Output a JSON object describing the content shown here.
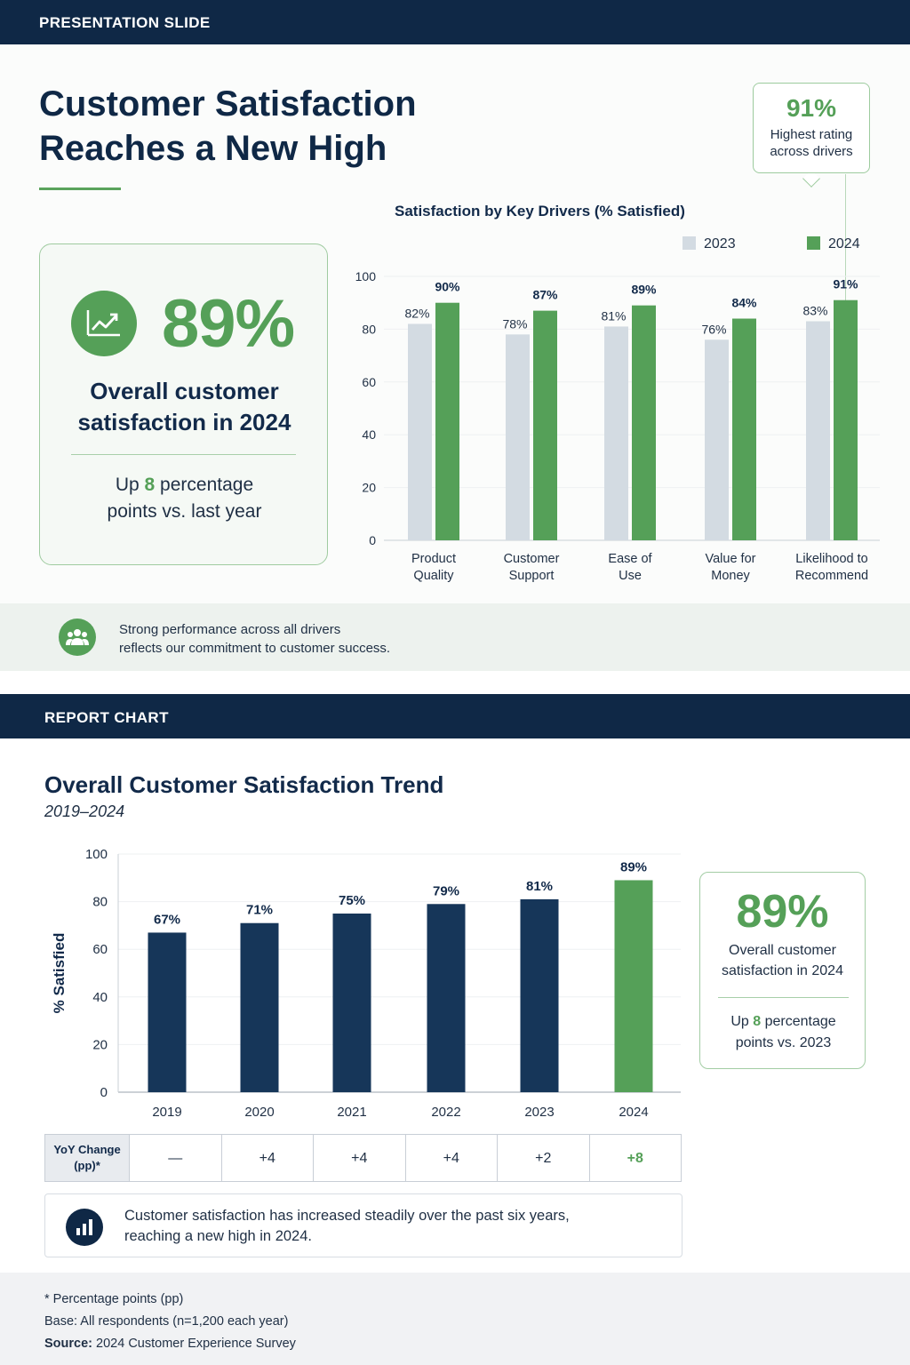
{
  "slide": {
    "header": "PRESENTATION SLIDE",
    "title": "Customer Satisfaction Reaches a New High",
    "callout": {
      "value": "91%",
      "label": "Highest rating across drivers"
    },
    "kpi": {
      "value": "89%",
      "label": "Overall customer satisfaction in 2024",
      "sub_pre": "Up ",
      "sub_num": "8",
      "sub_post": " percentage points vs. last year"
    },
    "banner": {
      "text_line1": "Strong performance across all drivers",
      "text_line2": "reflects our commitment to customer success."
    }
  },
  "report": {
    "header": "REPORT CHART",
    "title": "Overall Customer Satisfaction Trend",
    "subtitle": "2019–2024",
    "kpi": {
      "value": "89%",
      "label_line1": "Overall customer",
      "label_line2": "satisfaction in 2024",
      "sub_pre": "Up ",
      "sub_num": "8",
      "sub_post1": " percentage",
      "sub_post2": "points vs. 2023"
    },
    "yoy": {
      "label_line1": "YoY Change",
      "label_line2": "(pp)*",
      "values": [
        "—",
        "+4",
        "+4",
        "+4",
        "+2",
        "+8"
      ]
    },
    "note": {
      "line1": "Customer satisfaction has increased steadily over the past six years,",
      "line2": "reaching a new high in 2024."
    },
    "footer": {
      "line1": "* Percentage points (pp)",
      "line2": "Base: All respondents (n=1,200 each year)",
      "source_label": "Source:",
      "source_text": " 2024 Customer Experience Survey"
    }
  },
  "colors": {
    "navy": "#0f2846",
    "green": "#55a058",
    "light_gray": "#d3dbe2"
  },
  "chart_data": [
    {
      "type": "bar",
      "title": "Satisfaction by Key Drivers (% Satisfied)",
      "categories": [
        [
          "Product",
          "Quality"
        ],
        [
          "Customer",
          "Support"
        ],
        [
          "Ease of",
          "Use"
        ],
        [
          "Value for",
          "Money"
        ],
        [
          "Likelihood to",
          "Recommend"
        ]
      ],
      "series": [
        {
          "name": "2023",
          "values": [
            82,
            78,
            81,
            76,
            83
          ],
          "color": "#d3dbe2"
        },
        {
          "name": "2024",
          "values": [
            90,
            87,
            89,
            84,
            91
          ],
          "color": "#55a058"
        }
      ],
      "ylim": [
        0,
        100
      ],
      "yticks": [
        0,
        20,
        40,
        60,
        80,
        100
      ],
      "legend": "top-right",
      "grid": true
    },
    {
      "type": "bar",
      "categories": [
        "2019",
        "2020",
        "2021",
        "2022",
        "2023",
        "2024"
      ],
      "values": [
        67,
        71,
        75,
        79,
        81,
        89
      ],
      "ylabel": "% Satisfied",
      "ylim": [
        0,
        100
      ],
      "yticks": [
        0,
        20,
        40,
        60,
        80,
        100
      ],
      "colors": [
        "#163659",
        "#163659",
        "#163659",
        "#163659",
        "#163659",
        "#55a058"
      ],
      "grid": true
    }
  ]
}
